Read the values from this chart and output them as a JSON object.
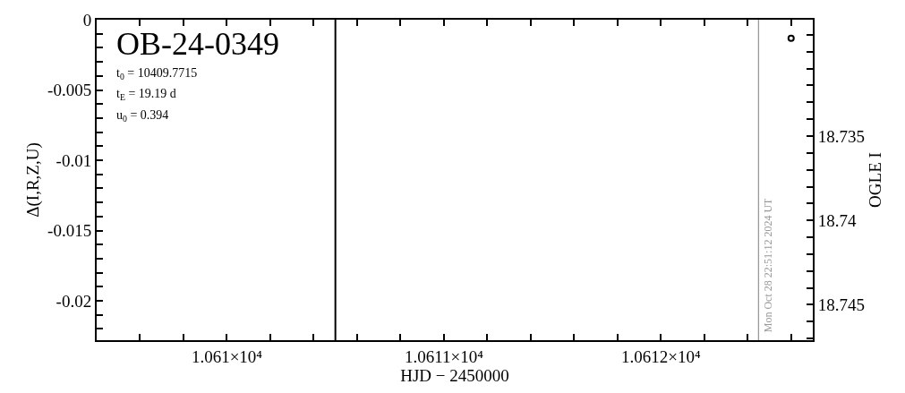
{
  "chart_data": {
    "type": "scatter",
    "title": "OB-24-0349",
    "annotations": [
      "t$_{0}$ = 10409.7715",
      "t$_{E}$ = 19.19 d",
      "u$_{0}$ = 0.394",
      "Mon Oct 28 22:51:12 2024 UT"
    ],
    "xlabel": "HJD − 2450000",
    "ylabel": "Δ(I,R,Z,U)",
    "y2label": "OGLE I",
    "xlim": [
      10609.4,
      10612.7
    ],
    "xticks": [
      {
        "value": 10609.4,
        "label": null
      },
      {
        "value": 10609.6,
        "label": null
      },
      {
        "value": 10609.8,
        "label": null
      },
      {
        "value": 10610,
        "label": "1.061×10⁴"
      },
      {
        "value": 10610.2,
        "label": null
      },
      {
        "value": 10610.4,
        "label": null
      },
      {
        "value": 10610.6,
        "label": null
      },
      {
        "value": 10610.8,
        "label": null
      },
      {
        "value": 10611,
        "label": "1.0611×10⁴"
      },
      {
        "value": 10611.2,
        "label": null
      },
      {
        "value": 10611.4,
        "label": null
      },
      {
        "value": 10611.6,
        "label": null
      },
      {
        "value": 10611.8,
        "label": null
      },
      {
        "value": 10612,
        "label": "1.0612×10⁴"
      },
      {
        "value": 10612.2,
        "label": null
      },
      {
        "value": 10612.4,
        "label": null
      },
      {
        "value": 10612.6,
        "label": null
      }
    ],
    "ylim": [
      -0.0228,
      0
    ],
    "yticks": [
      0,
      {
        "value": -0.001,
        "label": null
      },
      {
        "value": -0.002,
        "label": null
      },
      {
        "value": -0.003,
        "label": null
      },
      {
        "value": -0.004,
        "label": null
      },
      -0.005,
      {
        "value": -0.006,
        "label": null
      },
      {
        "value": -0.007,
        "label": null
      },
      {
        "value": -0.008,
        "label": null
      },
      {
        "value": -0.009,
        "label": null
      },
      -0.01,
      {
        "value": -0.011,
        "label": null
      },
      {
        "value": -0.012,
        "label": null
      },
      {
        "value": -0.013,
        "label": null
      },
      {
        "value": -0.014,
        "label": null
      },
      -0.015,
      {
        "value": -0.016,
        "label": null
      },
      {
        "value": -0.017,
        "label": null
      },
      {
        "value": -0.018,
        "label": null
      },
      {
        "value": -0.019,
        "label": null
      },
      -0.02,
      {
        "value": -0.021,
        "label": null
      },
      {
        "value": -0.022,
        "label": null
      }
    ],
    "y2lim": [
      18.7471,
      18.7281
    ],
    "y2ticks": [
      {
        "value": 18.729,
        "label": null
      },
      {
        "value": 18.73,
        "label": null
      },
      {
        "value": 18.731,
        "label": null
      },
      {
        "value": 18.732,
        "label": null
      },
      {
        "value": 18.733,
        "label": null
      },
      {
        "value": 18.734,
        "label": null
      },
      18.735,
      {
        "value": 18.736,
        "label": null
      },
      {
        "value": 18.737,
        "label": null
      },
      {
        "value": 18.738,
        "label": null
      },
      {
        "value": 18.739,
        "label": null
      },
      18.74,
      {
        "value": 18.741,
        "label": null
      },
      {
        "value": 18.742,
        "label": null
      },
      {
        "value": 18.743,
        "label": null
      },
      {
        "value": 18.744,
        "label": null
      },
      18.745,
      {
        "value": 18.746,
        "label": null
      },
      {
        "value": 18.747,
        "label": null
      }
    ],
    "series": [
      {
        "color": "#000000",
        "axis": "y2",
        "x": [
          10612.6
        ],
        "values": [
          18.7292
        ]
      }
    ],
    "marker": "circle",
    "ref_lines": [
      {
        "axis": "x",
        "value": 10610.5,
        "color": "#000000"
      },
      {
        "axis": "x",
        "value": 10612.45,
        "color": "#999999"
      }
    ]
  }
}
